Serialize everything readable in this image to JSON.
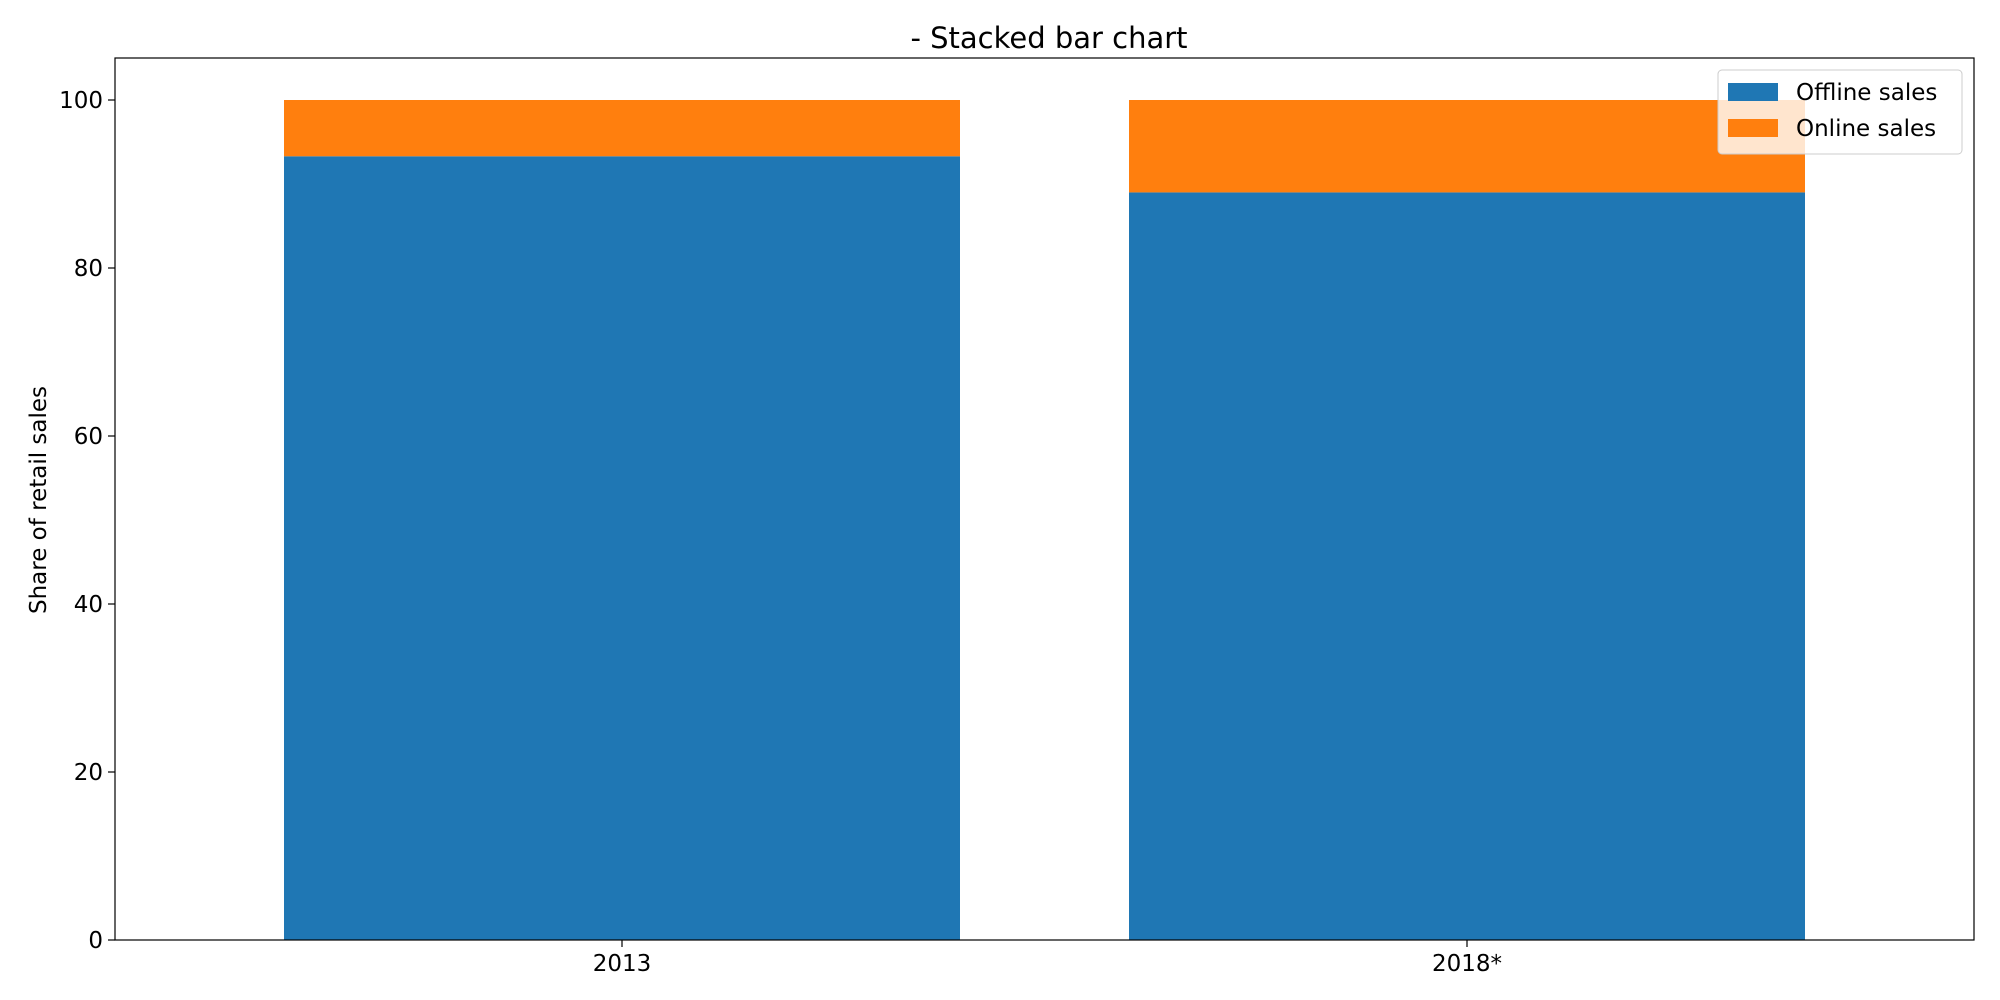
{
  "chart_data": {
    "type": "bar",
    "stacked": true,
    "title": "- Stacked bar chart",
    "xlabel": "",
    "ylabel": "Share of retail sales",
    "categories": [
      "2013",
      "2018*"
    ],
    "series": [
      {
        "name": "Offline sales",
        "values": [
          93.3,
          89.0
        ],
        "color": "#1f77b4"
      },
      {
        "name": "Online sales",
        "values": [
          6.7,
          11.0
        ],
        "color": "#ff7f0e"
      }
    ],
    "ylim": [
      0,
      105
    ],
    "yticks": [
      0,
      20,
      40,
      60,
      80,
      100
    ],
    "grid": false,
    "legend_position": "top-right"
  }
}
